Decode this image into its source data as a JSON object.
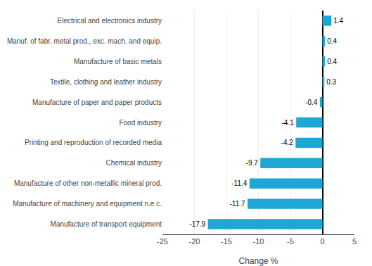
{
  "chart_data": {
    "type": "bar",
    "orientation": "horizontal",
    "categories": [
      "Manufacture of transport equipment",
      "Manufacture of machinery and equipment n.e.c.",
      "Manufacture of other non-metallic mineral prod.",
      "Chemical industry",
      "Printing and reproduction of recorded media",
      "Food industry",
      "Manufacture of paper and paper products",
      "Textile, clothing and leather industry",
      "Manufacture of basic metals",
      "Manuf. of fabr. metal prod., exc. mach. and equip.",
      "Electrical and electronics industry"
    ],
    "values": [
      -17.9,
      -11.7,
      -11.4,
      -9.7,
      -4.2,
      -4.1,
      -0.4,
      0.3,
      0.4,
      0.4,
      1.4
    ],
    "color": "#1ca7d4",
    "xlabel": "Change %",
    "xlim": [
      -25,
      5
    ],
    "xticks": [
      -25,
      -20,
      -15,
      -10,
      -5,
      0,
      5
    ],
    "grid": true,
    "data_labels": true
  }
}
